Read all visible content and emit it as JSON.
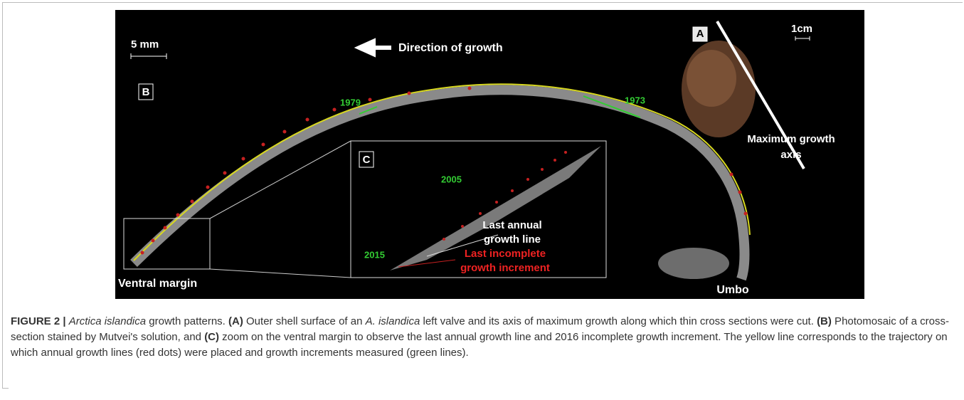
{
  "figure": {
    "panel_labels": {
      "a": "A",
      "b": "B",
      "c": "C"
    },
    "scale_bars": {
      "main": "5 mm",
      "photo": "1cm"
    },
    "direction": "Direction of growth",
    "years": {
      "y1979": "1979",
      "y1973": "1973",
      "y2005": "2005",
      "y2015": "2015"
    },
    "axis_label": [
      "Maximum growth",
      "axis"
    ],
    "last_annual": [
      "Last annual",
      "growth line"
    ],
    "last_incomplete": [
      "Last incomplete",
      "growth increment"
    ],
    "ventral": "Ventral margin",
    "umbo": "Umbo"
  },
  "caption": [
    "FIGURE 2 |",
    " ",
    "Arctica islandica",
    " growth patterns. ",
    "(A)",
    " Outer shell surface of an ",
    "A. islandica",
    " left valve and its axis of maximum growth along which thin cross sections were cut. ",
    "(B)",
    " Photomosaic of a cross-section stained by Mutvei's solution, and ",
    "(C)",
    " zoom on the ventral margin to observe the last annual growth line and 2016 incomplete growth increment. The yellow line corresponds to the trajectory on which annual growth lines (red dots) were placed and growth increments measured (green lines)."
  ]
}
